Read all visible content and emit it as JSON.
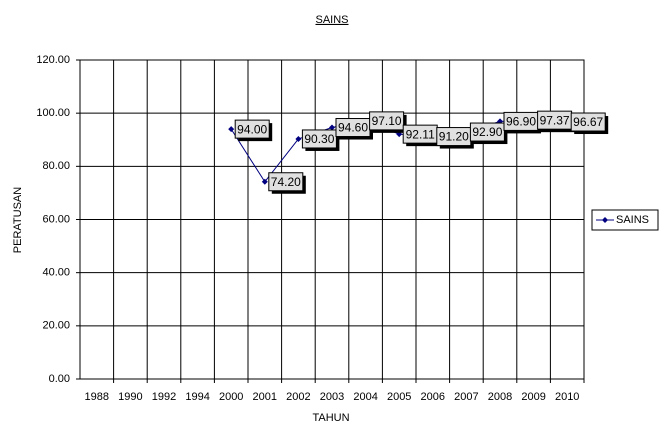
{
  "chart_data": {
    "type": "line",
    "title": "SAINS",
    "x_label": "TAHUN",
    "y_label": "PERATUSAN",
    "categories": [
      "1988",
      "1990",
      "1992",
      "1994",
      "2000",
      "2001",
      "2002",
      "2003",
      "2004",
      "2005",
      "2006",
      "2007",
      "2008",
      "2009",
      "2010"
    ],
    "series": [
      {
        "name": "SAINS",
        "color": "#000080",
        "values": [
          null,
          null,
          null,
          null,
          94.0,
          74.2,
          90.3,
          94.6,
          97.1,
          92.11,
          91.2,
          92.9,
          96.9,
          97.37,
          96.67
        ],
        "value_labels": [
          null,
          null,
          null,
          null,
          "94.00",
          "74.20",
          "90.30",
          "94.60",
          "97.10",
          "92.11",
          "91.20",
          "92.90",
          "96.90",
          "97.37",
          "96.67"
        ]
      }
    ],
    "ylim": [
      0,
      120
    ],
    "yticks": [
      {
        "value": 0,
        "label": "0.00"
      },
      {
        "value": 20,
        "label": "20.00"
      },
      {
        "value": 40,
        "label": "40.00"
      },
      {
        "value": 60,
        "label": "60.00"
      },
      {
        "value": 80,
        "label": "80.00"
      },
      {
        "value": 100,
        "label": "100.00"
      },
      {
        "value": 120,
        "label": "120.00"
      }
    ],
    "grid": true,
    "legend": "right"
  }
}
